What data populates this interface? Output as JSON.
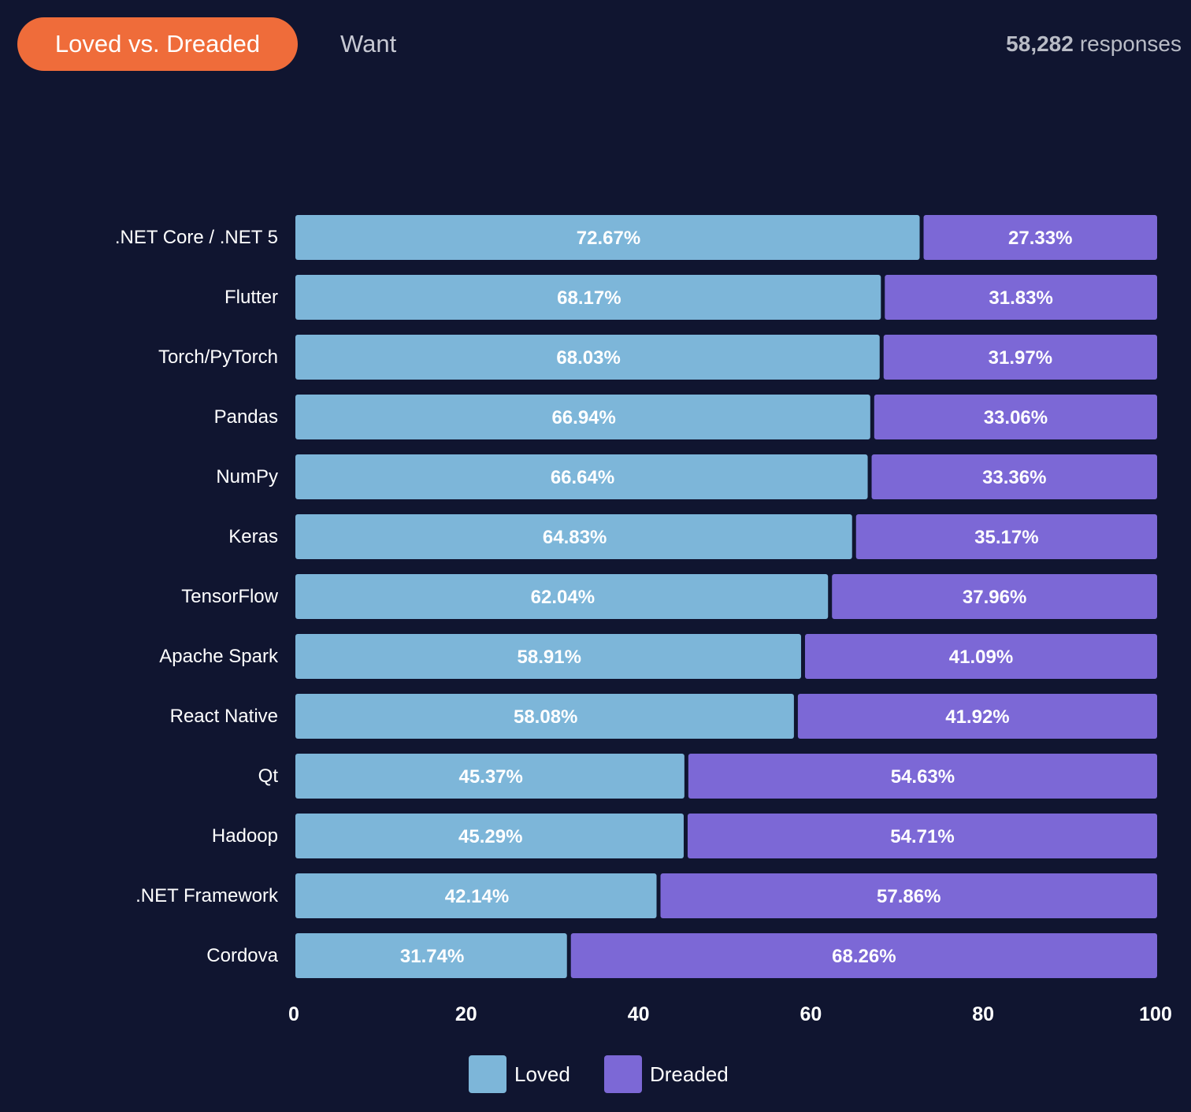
{
  "tabs": {
    "active_label": "Loved vs. Dreaded",
    "inactive_label": "Want"
  },
  "responses": {
    "count": "58,282",
    "label": "responses"
  },
  "colors": {
    "background": "#101530",
    "tab_active": "#ef6c3a",
    "loved": "#7db6d9",
    "dreaded": "#7c68d6",
    "label_text": "#ffffff"
  },
  "chart_data": {
    "type": "bar",
    "orientation": "horizontal",
    "stacked": true,
    "categories": [
      ".NET Core / .NET 5",
      "Flutter",
      "Torch/PyTorch",
      "Pandas",
      "NumPy",
      "Keras",
      "TensorFlow",
      "Apache Spark",
      "React Native",
      "Qt",
      "Hadoop",
      ".NET Framework",
      "Cordova"
    ],
    "series": [
      {
        "name": "Loved",
        "values": [
          72.67,
          68.17,
          68.03,
          66.94,
          66.64,
          64.83,
          62.04,
          58.91,
          58.08,
          45.37,
          45.29,
          42.14,
          31.74
        ],
        "labels": [
          "72.67%",
          "68.17%",
          "68.03%",
          "66.94%",
          "66.64%",
          "64.83%",
          "62.04%",
          "58.91%",
          "58.08%",
          "45.37%",
          "45.29%",
          "42.14%",
          "31.74%"
        ]
      },
      {
        "name": "Dreaded",
        "values": [
          27.33,
          31.83,
          31.97,
          33.06,
          33.36,
          35.17,
          37.96,
          41.09,
          41.92,
          54.63,
          54.71,
          57.86,
          68.26
        ],
        "labels": [
          "27.33%",
          "31.83%",
          "31.97%",
          "33.06%",
          "33.36%",
          "35.17%",
          "37.96%",
          "41.09%",
          "41.92%",
          "54.63%",
          "54.71%",
          "57.86%",
          "68.26%"
        ]
      }
    ],
    "xlim": [
      0,
      100
    ],
    "xticks": [
      "0",
      "20",
      "40",
      "60",
      "80",
      "100"
    ],
    "title": "",
    "xlabel": "",
    "ylabel": "",
    "grid": false,
    "legend": "bottom-center"
  }
}
